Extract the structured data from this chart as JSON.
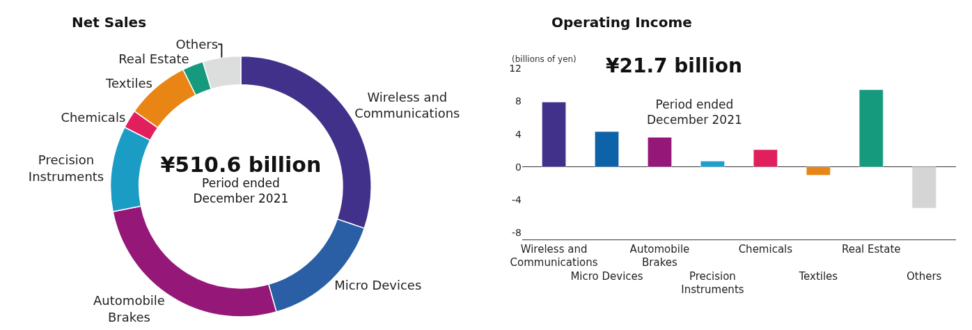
{
  "chart_data": [
    {
      "type": "donut",
      "title": "Net Sales",
      "annotations": [
        "¥510.6 billion",
        "Period ended December 2021"
      ],
      "categories": [
        "Wireless and Communications",
        "Micro Devices",
        "Automobile Brakes",
        "Precision Instruments",
        "Chemicals",
        "Textiles",
        "Real Estate",
        "Others"
      ],
      "values": [
        30.2,
        15.4,
        26.3,
        10.6,
        2.3,
        7.9,
        2.6,
        4.7
      ],
      "colors": [
        "#42318a",
        "#2a5fa5",
        "#951778",
        "#1b9cc4",
        "#e01f5c",
        "#e98515",
        "#159a7d",
        "#dcdedd"
      ]
    },
    {
      "type": "bar",
      "title": "Operating Income",
      "ylabel": "(billions of yen)",
      "annotations": [
        "¥21.7 billion",
        "Period ended December 2021"
      ],
      "categories": [
        "Wireless and Communications",
        "Micro Devices",
        "Automobile Brakes",
        "Precision Instruments",
        "Chemicals",
        "Textiles",
        "Real Estate",
        "Others"
      ],
      "values": [
        7.9,
        4.3,
        3.6,
        0.7,
        2.1,
        -1.0,
        9.4,
        -5.0
      ],
      "colors": [
        "#42318a",
        "#0d62a8",
        "#951778",
        "#1f9fcc",
        "#e01f5c",
        "#e98515",
        "#159a7d",
        "#d5d5d5"
      ],
      "ylim": [
        -8.8,
        12
      ],
      "yticks": [
        -8,
        -4,
        0,
        4,
        8,
        12
      ]
    }
  ]
}
